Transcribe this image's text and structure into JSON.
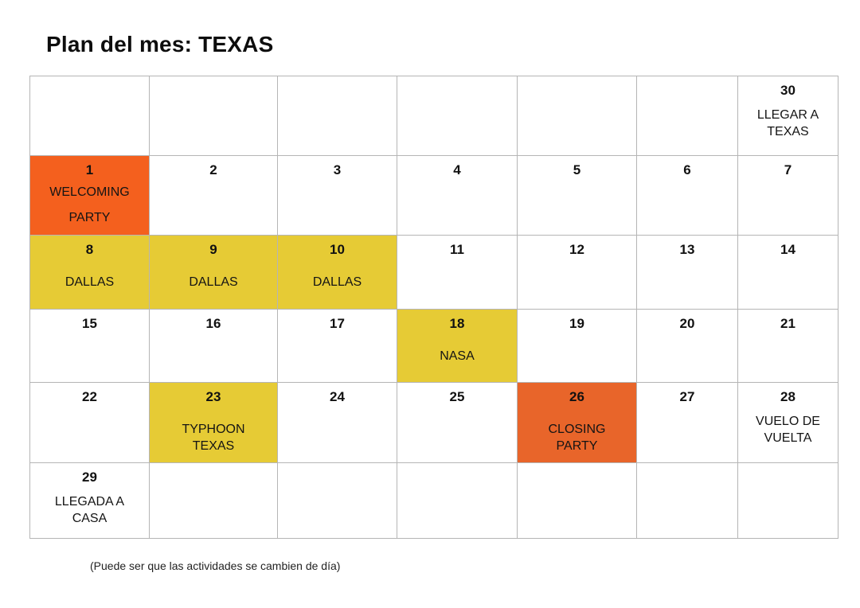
{
  "title": "Plan del mes: TEXAS",
  "note": "(Puede ser que las actividades se cambien de día)",
  "colors": {
    "orange": "#f4601e",
    "orange_dark": "#e8652a",
    "yellow": "#e6cb35",
    "border": "#b5b5b5"
  },
  "weeks": [
    [
      {
        "day": "",
        "event": "",
        "color": ""
      },
      {
        "day": "",
        "event": "",
        "color": ""
      },
      {
        "day": "",
        "event": "",
        "color": ""
      },
      {
        "day": "",
        "event": "",
        "color": ""
      },
      {
        "day": "",
        "event": "",
        "color": ""
      },
      {
        "day": "",
        "event": "",
        "color": ""
      },
      {
        "day": "30",
        "event": "LLEGAR A TEXAS",
        "color": ""
      }
    ],
    [
      {
        "day": "1",
        "event": "WELCOMING PARTY",
        "color": "orange"
      },
      {
        "day": "2",
        "event": "",
        "color": ""
      },
      {
        "day": "3",
        "event": "",
        "color": ""
      },
      {
        "day": "4",
        "event": "",
        "color": ""
      },
      {
        "day": "5",
        "event": "",
        "color": ""
      },
      {
        "day": "6",
        "event": "",
        "color": ""
      },
      {
        "day": "7",
        "event": "",
        "color": ""
      }
    ],
    [
      {
        "day": "8",
        "event": "DALLAS",
        "color": "yellow"
      },
      {
        "day": "9",
        "event": "DALLAS",
        "color": "yellow"
      },
      {
        "day": "10",
        "event": "DALLAS",
        "color": "yellow"
      },
      {
        "day": "11",
        "event": "",
        "color": ""
      },
      {
        "day": "12",
        "event": "",
        "color": ""
      },
      {
        "day": "13",
        "event": "",
        "color": ""
      },
      {
        "day": "14",
        "event": "",
        "color": ""
      }
    ],
    [
      {
        "day": "15",
        "event": "",
        "color": ""
      },
      {
        "day": "16",
        "event": "",
        "color": ""
      },
      {
        "day": "17",
        "event": "",
        "color": ""
      },
      {
        "day": "18",
        "event": "NASA",
        "color": "yellow"
      },
      {
        "day": "19",
        "event": "",
        "color": ""
      },
      {
        "day": "20",
        "event": "",
        "color": ""
      },
      {
        "day": "21",
        "event": "",
        "color": ""
      }
    ],
    [
      {
        "day": "22",
        "event": "",
        "color": ""
      },
      {
        "day": "23",
        "event": "TYPHOON TEXAS",
        "color": "yellow"
      },
      {
        "day": "24",
        "event": "",
        "color": ""
      },
      {
        "day": "25",
        "event": "",
        "color": ""
      },
      {
        "day": "26",
        "event": "CLOSING PARTY",
        "color": "orange2"
      },
      {
        "day": "27",
        "event": "",
        "color": ""
      },
      {
        "day": "28",
        "event": "VUELO DE VUELTA",
        "color": ""
      }
    ],
    [
      {
        "day": "29",
        "event": "LLEGADA A CASA",
        "color": ""
      },
      {
        "day": "",
        "event": "",
        "color": ""
      },
      {
        "day": "",
        "event": "",
        "color": ""
      },
      {
        "day": "",
        "event": "",
        "color": ""
      },
      {
        "day": "",
        "event": "",
        "color": ""
      },
      {
        "day": "",
        "event": "",
        "color": ""
      },
      {
        "day": "",
        "event": "",
        "color": ""
      }
    ]
  ]
}
